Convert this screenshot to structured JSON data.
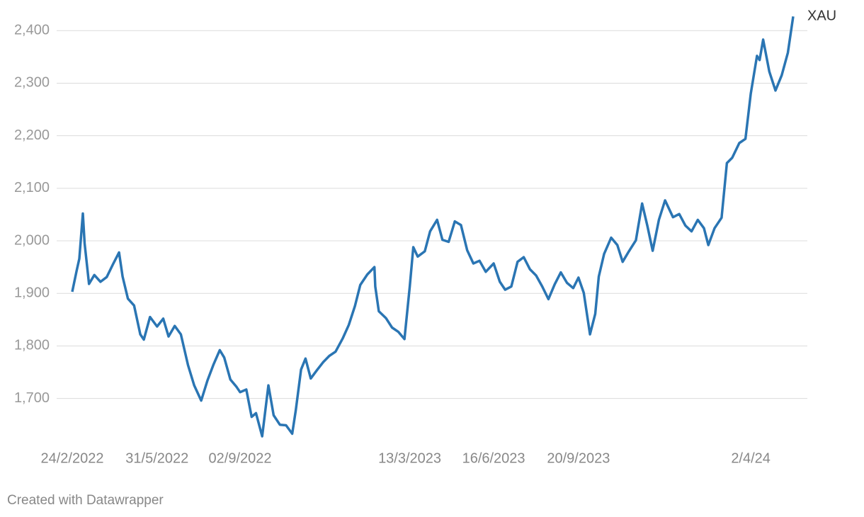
{
  "chart_data": {
    "type": "line",
    "x": [
      "2022-02-24",
      "2022-03-01",
      "2022-03-04",
      "2022-03-08",
      "2022-03-10",
      "2022-03-15",
      "2022-03-21",
      "2022-03-28",
      "2022-04-04",
      "2022-04-11",
      "2022-04-18",
      "2022-04-22",
      "2022-04-28",
      "2022-05-05",
      "2022-05-12",
      "2022-05-16",
      "2022-05-23",
      "2022-05-31",
      "2022-06-07",
      "2022-06-13",
      "2022-06-20",
      "2022-06-27",
      "2022-07-05",
      "2022-07-12",
      "2022-07-20",
      "2022-07-27",
      "2022-08-03",
      "2022-08-10",
      "2022-08-15",
      "2022-08-22",
      "2022-08-29",
      "2022-09-02",
      "2022-09-09",
      "2022-09-15",
      "2022-09-20",
      "2022-09-27",
      "2022-10-04",
      "2022-10-10",
      "2022-10-17",
      "2022-10-24",
      "2022-10-31",
      "2022-11-04",
      "2022-11-10",
      "2022-11-15",
      "2022-11-21",
      "2022-11-28",
      "2022-12-05",
      "2022-12-12",
      "2022-12-19",
      "2022-12-27",
      "2023-01-03",
      "2023-01-10",
      "2023-01-16",
      "2023-01-24",
      "2023-02-01",
      "2023-02-02",
      "2023-02-06",
      "2023-02-14",
      "2023-02-21",
      "2023-02-28",
      "2023-03-07",
      "2023-03-13",
      "2023-03-17",
      "2023-03-22",
      "2023-03-30",
      "2023-04-05",
      "2023-04-13",
      "2023-04-19",
      "2023-04-26",
      "2023-05-03",
      "2023-05-10",
      "2023-05-17",
      "2023-05-24",
      "2023-05-31",
      "2023-06-07",
      "2023-06-16",
      "2023-06-23",
      "2023-06-29",
      "2023-07-06",
      "2023-07-13",
      "2023-07-20",
      "2023-07-27",
      "2023-08-03",
      "2023-08-10",
      "2023-08-17",
      "2023-08-24",
      "2023-08-31",
      "2023-09-07",
      "2023-09-14",
      "2023-09-20",
      "2023-09-26",
      "2023-10-03",
      "2023-10-09",
      "2023-10-13",
      "2023-10-19",
      "2023-10-27",
      "2023-11-03",
      "2023-11-09",
      "2023-11-16",
      "2023-11-24",
      "2023-12-01",
      "2023-12-07",
      "2023-12-13",
      "2023-12-20",
      "2023-12-27",
      "2024-01-05",
      "2024-01-12",
      "2024-01-19",
      "2024-01-26",
      "2024-02-02",
      "2024-02-09",
      "2024-02-14",
      "2024-02-21",
      "2024-02-29",
      "2024-03-06",
      "2024-03-12",
      "2024-03-20",
      "2024-03-27",
      "2024-04-02",
      "2024-04-09",
      "2024-04-12",
      "2024-04-16",
      "2024-04-23",
      "2024-04-30",
      "2024-05-07",
      "2024-05-14",
      "2024-05-20"
    ],
    "series": [
      {
        "name": "XAU",
        "color": "#2a75b3",
        "values": [
          1903,
          1943,
          1966,
          2052,
          1995,
          1918,
          1935,
          1922,
          1931,
          1955,
          1978,
          1932,
          1890,
          1877,
          1822,
          1812,
          1855,
          1837,
          1852,
          1818,
          1838,
          1822,
          1764,
          1725,
          1696,
          1734,
          1765,
          1792,
          1778,
          1736,
          1722,
          1712,
          1717,
          1665,
          1672,
          1628,
          1725,
          1668,
          1650,
          1649,
          1633,
          1677,
          1755,
          1776,
          1738,
          1754,
          1769,
          1781,
          1789,
          1814,
          1840,
          1876,
          1916,
          1936,
          1950,
          1913,
          1866,
          1853,
          1835,
          1827,
          1813,
          1913,
          1988,
          1970,
          1980,
          2018,
          2040,
          2002,
          1998,
          2037,
          2030,
          1982,
          1957,
          1962,
          1941,
          1957,
          1922,
          1907,
          1913,
          1960,
          1969,
          1946,
          1934,
          1913,
          1889,
          1917,
          1940,
          1920,
          1910,
          1930,
          1901,
          1822,
          1861,
          1932,
          1975,
          2006,
          1992,
          1960,
          1980,
          2001,
          2071,
          2028,
          1981,
          2040,
          2077,
          2045,
          2051,
          2029,
          2018,
          2040,
          2024,
          1992,
          2024,
          2044,
          2148,
          2158,
          2186,
          2194,
          2280,
          2352,
          2344,
          2383,
          2322,
          2286,
          2315,
          2358,
          2427
        ]
      }
    ],
    "xlim": [
      "2022-02-24",
      "2024-05-20"
    ],
    "xticks": [
      {
        "value": "2022-02-24",
        "label": "24/2/2022"
      },
      {
        "value": "2022-05-31",
        "label": "31/5/2022"
      },
      {
        "value": "2022-09-02",
        "label": "02/9/2022"
      },
      {
        "value": "2023-03-13",
        "label": "13/3/2023"
      },
      {
        "value": "2023-06-16",
        "label": "16/6/2023"
      },
      {
        "value": "2023-09-20",
        "label": "20/9/2023"
      },
      {
        "value": "2024-04-02",
        "label": "2/4/24"
      }
    ],
    "ylim": [
      1620,
      2430
    ],
    "yticks": [
      {
        "value": 1700,
        "label": "1,700"
      },
      {
        "value": 1800,
        "label": "1,800"
      },
      {
        "value": 1900,
        "label": "1,900"
      },
      {
        "value": 2000,
        "label": "2,000"
      },
      {
        "value": 2100,
        "label": "2,100"
      },
      {
        "value": 2200,
        "label": "2,200"
      },
      {
        "value": 2300,
        "label": "2,300"
      },
      {
        "value": 2400,
        "label": "2,400"
      }
    ],
    "grid": true,
    "footer": "Created with Datawrapper"
  }
}
